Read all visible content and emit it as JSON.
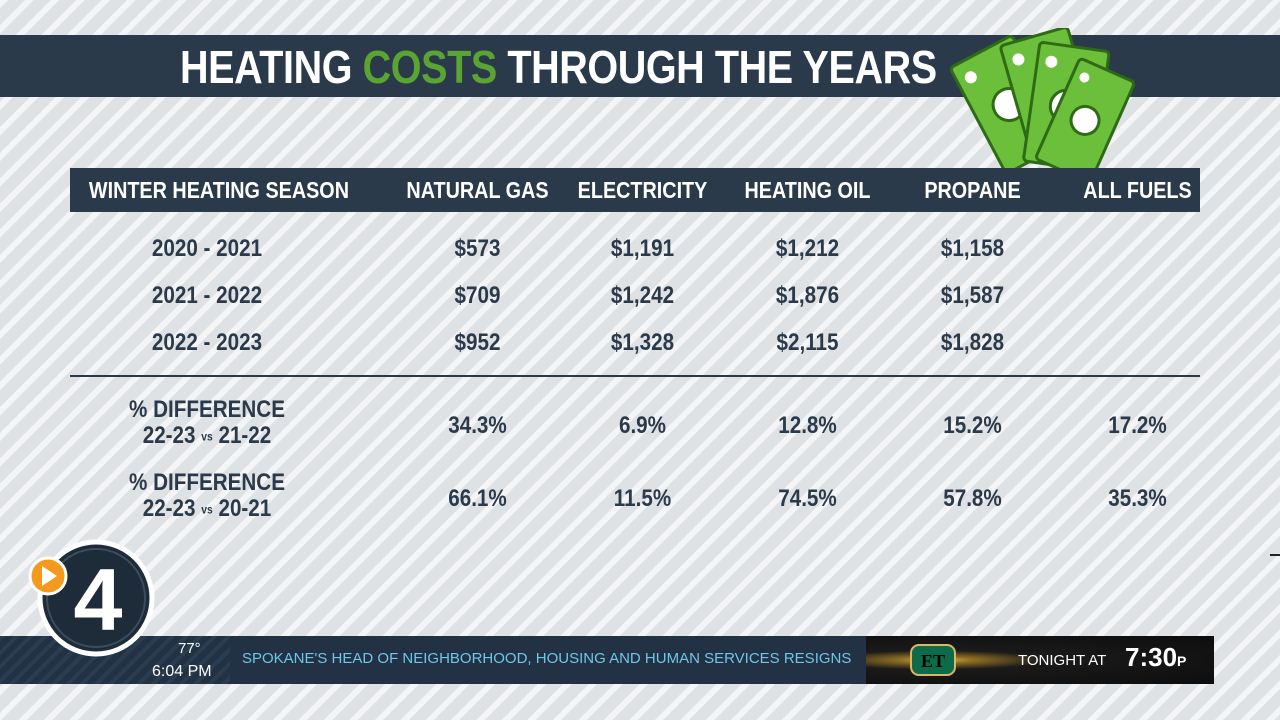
{
  "title": {
    "part1": "HEATING ",
    "accent": "COSTS",
    "part2": " THROUGH THE YEARS"
  },
  "columns": [
    "WINTER HEATING SEASON",
    "NATURAL GAS",
    "ELECTRICITY",
    "HEATING OIL",
    "PROPANE",
    "ALL FUELS"
  ],
  "rows": [
    {
      "season": "2020 - 2021",
      "natural_gas": "$573",
      "electricity": "$1,191",
      "heating_oil": "$1,212",
      "propane": "$1,158",
      "all_fuels": ""
    },
    {
      "season": "2021 - 2022",
      "natural_gas": "$709",
      "electricity": "$1,242",
      "heating_oil": "$1,876",
      "propane": "$1,587",
      "all_fuels": ""
    },
    {
      "season": "2022 - 2023",
      "natural_gas": "$952",
      "electricity": "$1,328",
      "heating_oil": "$2,115",
      "propane": "$1,828",
      "all_fuels": ""
    }
  ],
  "differences": [
    {
      "label": "% DIFFERENCE",
      "compare_a": "22-23",
      "vs": "vs",
      "compare_b": "21-22",
      "natural_gas": "34.3%",
      "electricity": "6.9%",
      "heating_oil": "12.8%",
      "propane": "15.2%",
      "all_fuels": "17.2%"
    },
    {
      "label": "% DIFFERENCE",
      "compare_a": "22-23",
      "vs": "vs",
      "compare_b": "20-21",
      "natural_gas": "66.1%",
      "electricity": "11.5%",
      "heating_oil": "74.5%",
      "propane": "57.8%",
      "all_fuels": "35.3%"
    }
  ],
  "ticker": {
    "temperature": "77°",
    "time": "6:04 PM",
    "headline": "SPOKANE'S HEAD OF NEIGHBORHOOD, HOUSING AND HUMAN SERVICES RESIGNS",
    "promo_logo": "ET",
    "promo_text": "TONIGHT AT",
    "promo_time": "7:30",
    "promo_ampm": "P"
  },
  "station_logo": "4",
  "colors": {
    "navy": "#2b3a4b",
    "green": "#5aa431",
    "ticker_text": "#6fc6e8",
    "logo_orange": "#f39a1c"
  },
  "icons": [
    "money-bills-icon",
    "play-icon"
  ]
}
